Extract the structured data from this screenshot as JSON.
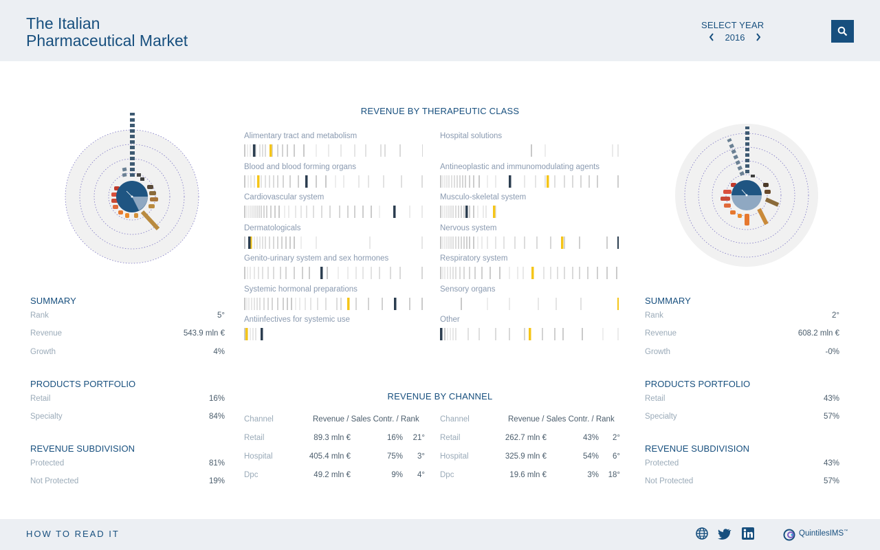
{
  "header": {
    "title_line1": "The Italian",
    "title_line2": "Pharmaceutical Market",
    "select_year_label": "SELECT YEAR",
    "year": "2016",
    "prev_icon": "chevron-left-icon",
    "next_icon": "chevron-right-icon",
    "search_icon": "search-icon"
  },
  "left": {
    "summary": {
      "title": "SUMMARY",
      "rows": [
        {
          "label": "Rank",
          "value": "5°"
        },
        {
          "label": "Revenue",
          "value": "543.9 mln €"
        },
        {
          "label": "Growth",
          "value": "4%"
        }
      ]
    },
    "portfolio": {
      "title": "PRODUCTS PORTFOLIO",
      "rows": [
        {
          "label": "Retail",
          "value": "16%"
        },
        {
          "label": "Specialty",
          "value": "84%"
        }
      ]
    },
    "subdivision": {
      "title": "REVENUE SUBDIVISION",
      "rows": [
        {
          "label": "Protected",
          "value": "81%"
        },
        {
          "label": "Not Protected",
          "value": "19%"
        }
      ]
    }
  },
  "right": {
    "summary": {
      "title": "SUMMARY",
      "rows": [
        {
          "label": "Rank",
          "value": "2°"
        },
        {
          "label": "Revenue",
          "value": "608.2 mln €"
        },
        {
          "label": "Growth",
          "value": "-0%"
        }
      ]
    },
    "portfolio": {
      "title": "PRODUCTS PORTFOLIO",
      "rows": [
        {
          "label": "Retail",
          "value": "43%"
        },
        {
          "label": "Specialty",
          "value": "57%"
        }
      ]
    },
    "subdivision": {
      "title": "REVENUE SUBDIVISION",
      "rows": [
        {
          "label": "Protected",
          "value": "43%"
        },
        {
          "label": "Not Protected",
          "value": "57%"
        }
      ]
    }
  },
  "therapeutic": {
    "title": "REVENUE BY THERAPEUTIC CLASS",
    "classes": [
      "Alimentary tract and metabolism",
      "Blood and blood forming organs",
      "Cardiovascular system",
      "Dermatologicals",
      "Genito-urinary system and sex hormones",
      "Systemic hormonal preparations",
      "Antiinfectives for systemic use",
      "Hospital solutions",
      "Antineoplastic and immunomodulating agents",
      "Musculo-skeletal system",
      "Nervous system",
      "Respiratory system",
      "Sensory organs",
      "Other"
    ]
  },
  "channel": {
    "title": "REVENUE BY CHANNEL",
    "header": {
      "channel": "Channel",
      "metrics": "Revenue / Sales Contr. / Rank"
    },
    "left_rows": [
      {
        "channel": "Retail",
        "revenue": "89.3 mln €",
        "contr": "16%",
        "rank": "21°"
      },
      {
        "channel": "Hospital",
        "revenue": "405.4 mln €",
        "contr": "75%",
        "rank": "3°"
      },
      {
        "channel": "Dpc",
        "revenue": "49.2 mln €",
        "contr": "9%",
        "rank": "4°"
      }
    ],
    "right_rows": [
      {
        "channel": "Retail",
        "revenue": "262.7 mln €",
        "contr": "43%",
        "rank": "2°"
      },
      {
        "channel": "Hospital",
        "revenue": "325.9 mln €",
        "contr": "54%",
        "rank": "6°"
      },
      {
        "channel": "Dpc",
        "revenue": "19.6 mln €",
        "contr": "3%",
        "rank": "18°"
      }
    ]
  },
  "footer": {
    "how_to": "HOW TO READ IT",
    "icons": [
      "globe-icon",
      "twitter-icon",
      "linkedin-icon"
    ],
    "brand": "QuintilesIMS",
    "brand_mark": "™"
  },
  "colors": {
    "primary": "#174f7e",
    "muted": "#9aaab8",
    "highlight": "#f5c518",
    "dark_marker": "#2c3e50",
    "header_bg": "#eceff3"
  }
}
